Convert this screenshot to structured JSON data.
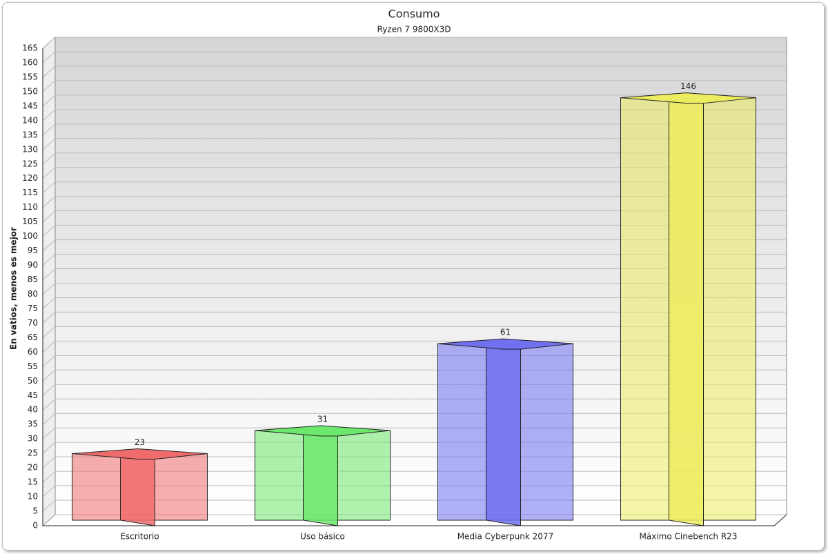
{
  "chart_data": {
    "type": "bar3d",
    "title": "Consumo",
    "subtitle": "Ryzen 7 9800X3D",
    "y_label": "En vatios, menos es mejor",
    "categories": [
      "Escritorio",
      "Uso básico",
      "Media Cyberpunk 2077",
      "Máximo Cinebench R23"
    ],
    "values": [
      23,
      31,
      61,
      146
    ],
    "colors": [
      "#f06c6c",
      "#6ce86c",
      "#7070f0",
      "#ecec60"
    ],
    "ylim": [
      0,
      165
    ],
    "yticks": [
      0,
      5,
      10,
      15,
      20,
      25,
      30,
      35,
      40,
      45,
      50,
      55,
      60,
      65,
      70,
      75,
      80,
      85,
      90,
      95,
      100,
      105,
      110,
      115,
      120,
      125,
      130,
      135,
      140,
      145,
      150,
      155,
      160,
      165
    ],
    "grid": true
  }
}
